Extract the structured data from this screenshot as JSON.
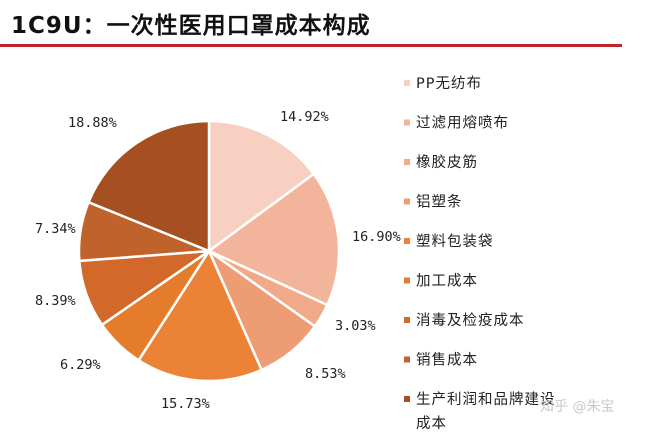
{
  "title": "1C9U：一次性医用口罩成本构成",
  "watermark": "知乎 @朱宝",
  "chart_data": {
    "type": "pie",
    "title": "1C9U：一次性医用口罩成本构成",
    "legend_position": "right",
    "slices": [
      {
        "label": "PP无纺布",
        "value": 14.92,
        "display": "14.92%",
        "color": "#f7d0c1"
      },
      {
        "label": "过滤用熔喷布",
        "value": 16.9,
        "display": "16.90%",
        "color": "#f2b49b"
      },
      {
        "label": "橡胶皮筋",
        "value": 3.03,
        "display": "3.03%",
        "color": "#f0aa8a"
      },
      {
        "label": "铝塑条",
        "value": 8.53,
        "display": "8.53%",
        "color": "#ee9c74"
      },
      {
        "label": "塑料包装袋",
        "value": 15.73,
        "display": "15.73%",
        "color": "#ec8236"
      },
      {
        "label": "加工成本",
        "value": 6.29,
        "display": "6.29%",
        "color": "#e47c2b"
      },
      {
        "label": "消毒及检疫成本",
        "value": 8.39,
        "display": "8.39%",
        "color": "#d2692a"
      },
      {
        "label": "销售成本",
        "value": 7.34,
        "display": "7.34%",
        "color": "#c0622b"
      },
      {
        "label": "生产利润和品牌建设成本",
        "value": 18.88,
        "display": "18.88%",
        "color": "#a64f20"
      }
    ],
    "legend_lines": [
      [
        "PP无纺布"
      ],
      [
        "过滤用熔喷布"
      ],
      [
        "橡胶皮筋"
      ],
      [
        "铝塑条"
      ],
      [
        "塑料包装袋"
      ],
      [
        "加工成本"
      ],
      [
        "消毒及检疫成本"
      ],
      [
        "销售成本"
      ],
      [
        "生产利润和品牌建设",
        "成本"
      ]
    ]
  }
}
